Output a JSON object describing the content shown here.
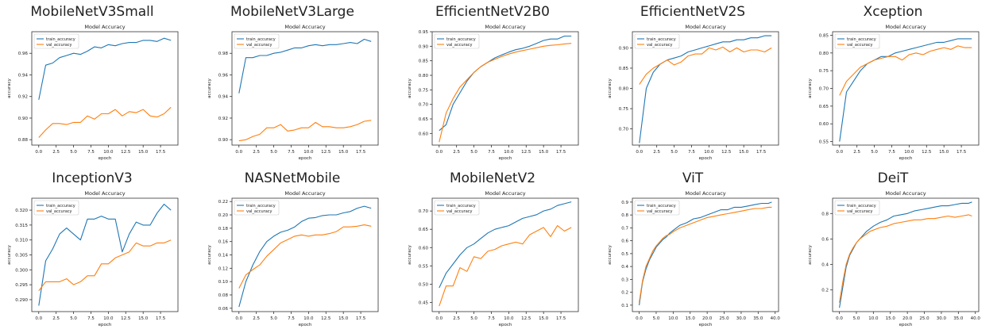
{
  "legend_labels": {
    "train": "train_accuracy",
    "val": "val_accuracy"
  },
  "colors": {
    "train": "#1f77b4",
    "val": "#ff7f0e",
    "axis": "#333333",
    "text": "#222222"
  },
  "chart_data": [
    {
      "model": "MobileNetV3Small",
      "type": "line",
      "title": "Model Accuracy",
      "xlabel": "epoch",
      "ylabel": "accuracy",
      "xlim": [
        -1,
        20
      ],
      "ylim": [
        0.875,
        0.98
      ],
      "x_ticks": [
        0,
        2.5,
        5,
        7.5,
        10,
        12.5,
        15,
        17.5
      ],
      "y_ticks": [
        0.88,
        0.9,
        0.92,
        0.94,
        0.96
      ],
      "legend": "top-left",
      "grid": false,
      "series": [
        {
          "name": "train_accuracy",
          "values": [
            0.917,
            0.949,
            0.951,
            0.956,
            0.958,
            0.96,
            0.959,
            0.962,
            0.966,
            0.965,
            0.968,
            0.967,
            0.969,
            0.97,
            0.97,
            0.972,
            0.972,
            0.971,
            0.974,
            0.972
          ]
        },
        {
          "name": "val_accuracy",
          "values": [
            0.882,
            0.889,
            0.895,
            0.895,
            0.894,
            0.896,
            0.896,
            0.902,
            0.899,
            0.904,
            0.904,
            0.908,
            0.902,
            0.906,
            0.905,
            0.908,
            0.902,
            0.901,
            0.904,
            0.91
          ]
        }
      ]
    },
    {
      "model": "MobileNetV3Large",
      "type": "line",
      "title": "Model Accuracy",
      "xlabel": "epoch",
      "ylabel": "accuracy",
      "xlim": [
        -1,
        20
      ],
      "ylim": [
        0.895,
        1.0
      ],
      "x_ticks": [
        0,
        2.5,
        5,
        7.5,
        10,
        12.5,
        15,
        17.5
      ],
      "y_ticks": [
        0.9,
        0.92,
        0.94,
        0.96,
        0.98
      ],
      "legend": "top-left",
      "grid": false,
      "series": [
        {
          "name": "train_accuracy",
          "values": [
            0.943,
            0.976,
            0.976,
            0.978,
            0.978,
            0.98,
            0.981,
            0.983,
            0.985,
            0.985,
            0.987,
            0.988,
            0.987,
            0.988,
            0.988,
            0.989,
            0.99,
            0.989,
            0.993,
            0.991
          ]
        },
        {
          "name": "val_accuracy",
          "values": [
            0.899,
            0.9,
            0.903,
            0.905,
            0.911,
            0.911,
            0.914,
            0.908,
            0.909,
            0.911,
            0.911,
            0.916,
            0.912,
            0.912,
            0.911,
            0.911,
            0.912,
            0.914,
            0.917,
            0.918
          ]
        }
      ]
    },
    {
      "model": "EfficientNetV2B0",
      "type": "line",
      "title": "Model Accuracy",
      "xlabel": "epoch",
      "ylabel": "accuracy",
      "xlim": [
        -1,
        20
      ],
      "ylim": [
        0.56,
        0.95
      ],
      "x_ticks": [
        0,
        2.5,
        5,
        7.5,
        10,
        12.5,
        15,
        17.5
      ],
      "y_ticks": [
        0.6,
        0.65,
        0.7,
        0.75,
        0.8,
        0.85,
        0.9,
        0.95
      ],
      "legend": "top-left",
      "grid": false,
      "series": [
        {
          "name": "train_accuracy",
          "values": [
            0.61,
            0.63,
            0.7,
            0.74,
            0.78,
            0.81,
            0.83,
            0.845,
            0.86,
            0.87,
            0.88,
            0.888,
            0.893,
            0.9,
            0.91,
            0.92,
            0.925,
            0.925,
            0.935,
            0.935
          ]
        },
        {
          "name": "val_accuracy",
          "values": [
            0.57,
            0.67,
            0.72,
            0.76,
            0.785,
            0.81,
            0.83,
            0.845,
            0.855,
            0.865,
            0.873,
            0.88,
            0.885,
            0.89,
            0.895,
            0.9,
            0.903,
            0.905,
            0.908,
            0.91
          ]
        }
      ]
    },
    {
      "model": "EfficientNetV2S",
      "type": "line",
      "title": "Model Accuracy",
      "xlabel": "epoch",
      "ylabel": "accuracy",
      "xlim": [
        -1,
        20
      ],
      "ylim": [
        0.66,
        0.94
      ],
      "x_ticks": [
        0,
        2.5,
        5,
        7.5,
        10,
        12.5,
        15,
        17.5
      ],
      "y_ticks": [
        0.7,
        0.75,
        0.8,
        0.85,
        0.9
      ],
      "legend": "top-left",
      "grid": false,
      "series": [
        {
          "name": "train_accuracy",
          "values": [
            0.665,
            0.8,
            0.84,
            0.86,
            0.87,
            0.875,
            0.88,
            0.89,
            0.895,
            0.9,
            0.905,
            0.91,
            0.915,
            0.915,
            0.92,
            0.92,
            0.925,
            0.925,
            0.93,
            0.93
          ]
        },
        {
          "name": "val_accuracy",
          "values": [
            0.81,
            0.835,
            0.85,
            0.86,
            0.87,
            0.858,
            0.865,
            0.88,
            0.885,
            0.885,
            0.9,
            0.895,
            0.902,
            0.89,
            0.9,
            0.89,
            0.895,
            0.895,
            0.89,
            0.9
          ]
        }
      ]
    },
    {
      "model": "Xception",
      "type": "line",
      "title": "Model Accuracy",
      "xlabel": "epoch",
      "ylabel": "accuracy",
      "xlim": [
        -1,
        20
      ],
      "ylim": [
        0.54,
        0.86
      ],
      "x_ticks": [
        0,
        2.5,
        5,
        7.5,
        10,
        12.5,
        15,
        17.5
      ],
      "y_ticks": [
        0.55,
        0.6,
        0.65,
        0.7,
        0.75,
        0.8,
        0.85
      ],
      "legend": "top-left",
      "grid": false,
      "series": [
        {
          "name": "train_accuracy",
          "values": [
            0.55,
            0.69,
            0.72,
            0.75,
            0.77,
            0.78,
            0.79,
            0.79,
            0.8,
            0.805,
            0.81,
            0.815,
            0.82,
            0.825,
            0.83,
            0.83,
            0.835,
            0.84,
            0.84,
            0.84
          ]
        },
        {
          "name": "val_accuracy",
          "values": [
            0.68,
            0.72,
            0.74,
            0.76,
            0.77,
            0.78,
            0.785,
            0.79,
            0.79,
            0.78,
            0.795,
            0.8,
            0.795,
            0.805,
            0.81,
            0.815,
            0.81,
            0.82,
            0.815,
            0.815
          ]
        }
      ]
    },
    {
      "model": "InceptionV3",
      "type": "line",
      "title": "Model Accuracy",
      "xlabel": "epoch",
      "ylabel": "accuracy",
      "xlim": [
        -1,
        20
      ],
      "ylim": [
        0.286,
        0.324
      ],
      "x_ticks": [
        0,
        2.5,
        5,
        7.5,
        10,
        12.5,
        15,
        17.5
      ],
      "y_ticks": [
        0.29,
        0.295,
        0.3,
        0.305,
        0.31,
        0.315,
        0.32
      ],
      "legend": "top-left",
      "grid": false,
      "series": [
        {
          "name": "train_accuracy",
          "values": [
            0.288,
            0.303,
            0.307,
            0.312,
            0.314,
            0.312,
            0.31,
            0.317,
            0.317,
            0.318,
            0.317,
            0.317,
            0.306,
            0.312,
            0.316,
            0.315,
            0.315,
            0.319,
            0.322,
            0.32
          ]
        },
        {
          "name": "val_accuracy",
          "values": [
            0.293,
            0.296,
            0.296,
            0.296,
            0.297,
            0.295,
            0.296,
            0.298,
            0.298,
            0.302,
            0.302,
            0.304,
            0.305,
            0.306,
            0.309,
            0.308,
            0.308,
            0.309,
            0.309,
            0.31
          ]
        }
      ]
    },
    {
      "model": "NASNetMobile",
      "type": "line",
      "title": "Model Accuracy",
      "xlabel": "epoch",
      "ylabel": "accuracy",
      "xlim": [
        -1,
        20
      ],
      "ylim": [
        0.055,
        0.225
      ],
      "x_ticks": [
        0,
        2.5,
        5,
        7.5,
        10,
        12.5,
        15,
        17.5
      ],
      "y_ticks": [
        0.06,
        0.08,
        0.1,
        0.12,
        0.14,
        0.16,
        0.18,
        0.2,
        0.22
      ],
      "legend": "top-left",
      "grid": false,
      "series": [
        {
          "name": "train_accuracy",
          "values": [
            0.062,
            0.1,
            0.125,
            0.145,
            0.16,
            0.168,
            0.174,
            0.177,
            0.182,
            0.19,
            0.195,
            0.196,
            0.199,
            0.2,
            0.2,
            0.203,
            0.205,
            0.21,
            0.213,
            0.21
          ]
        },
        {
          "name": "val_accuracy",
          "values": [
            0.09,
            0.11,
            0.118,
            0.125,
            0.138,
            0.148,
            0.158,
            0.163,
            0.168,
            0.17,
            0.168,
            0.17,
            0.17,
            0.172,
            0.175,
            0.182,
            0.182,
            0.183,
            0.185,
            0.183
          ]
        }
      ]
    },
    {
      "model": "MobileNetV2",
      "type": "line",
      "title": "Model Accuracy",
      "xlabel": "epoch",
      "ylabel": "accuracy",
      "xlim": [
        -1,
        20
      ],
      "ylim": [
        0.425,
        0.735
      ],
      "x_ticks": [
        0,
        2.5,
        5,
        7.5,
        10,
        12.5,
        15,
        17.5
      ],
      "y_ticks": [
        0.45,
        0.5,
        0.55,
        0.6,
        0.65,
        0.7
      ],
      "legend": "top-left",
      "grid": false,
      "series": [
        {
          "name": "train_accuracy",
          "values": [
            0.49,
            0.53,
            0.555,
            0.58,
            0.6,
            0.61,
            0.625,
            0.64,
            0.65,
            0.655,
            0.66,
            0.67,
            0.68,
            0.685,
            0.69,
            0.7,
            0.705,
            0.715,
            0.72,
            0.725
          ]
        },
        {
          "name": "val_accuracy",
          "values": [
            0.44,
            0.495,
            0.495,
            0.545,
            0.535,
            0.575,
            0.57,
            0.59,
            0.595,
            0.605,
            0.61,
            0.615,
            0.61,
            0.635,
            0.645,
            0.655,
            0.63,
            0.66,
            0.645,
            0.655
          ]
        }
      ]
    },
    {
      "model": "ViT",
      "type": "line",
      "title": "Model Accuracy",
      "xlabel": "epoch",
      "ylabel": "accuracy",
      "xlim": [
        -2,
        41
      ],
      "ylim": [
        0.05,
        0.93
      ],
      "x_ticks": [
        0,
        5,
        10,
        15,
        20,
        25,
        30,
        35,
        40
      ],
      "y_ticks": [
        0.1,
        0.2,
        0.3,
        0.4,
        0.5,
        0.6,
        0.7,
        0.8,
        0.9
      ],
      "legend": "top-left",
      "grid": false,
      "x": [
        0,
        1,
        2,
        3,
        4,
        5,
        6,
        7,
        8,
        9,
        10,
        12,
        14,
        16,
        18,
        20,
        22,
        24,
        26,
        28,
        30,
        32,
        34,
        36,
        38,
        39
      ],
      "series": [
        {
          "name": "train_accuracy",
          "values": [
            0.1,
            0.28,
            0.38,
            0.45,
            0.5,
            0.55,
            0.58,
            0.61,
            0.63,
            0.66,
            0.68,
            0.72,
            0.74,
            0.77,
            0.78,
            0.8,
            0.82,
            0.84,
            0.84,
            0.86,
            0.86,
            0.87,
            0.88,
            0.89,
            0.89,
            0.9
          ]
        },
        {
          "name": "val_accuracy",
          "values": [
            0.12,
            0.29,
            0.4,
            0.46,
            0.52,
            0.56,
            0.59,
            0.62,
            0.64,
            0.65,
            0.67,
            0.7,
            0.72,
            0.74,
            0.76,
            0.78,
            0.79,
            0.8,
            0.81,
            0.82,
            0.83,
            0.84,
            0.85,
            0.85,
            0.86,
            0.86
          ]
        }
      ]
    },
    {
      "model": "DeiT",
      "type": "line",
      "title": "Model Accuracy",
      "xlabel": "epoch",
      "ylabel": "accuracy",
      "xlim": [
        -2,
        41
      ],
      "ylim": [
        0.03,
        0.92
      ],
      "x_ticks": [
        0,
        5,
        10,
        15,
        20,
        25,
        30,
        35,
        40
      ],
      "y_ticks": [
        0.2,
        0.4,
        0.6,
        0.8
      ],
      "legend": "top-left",
      "grid": false,
      "x": [
        0,
        1,
        2,
        3,
        4,
        5,
        6,
        7,
        8,
        9,
        10,
        12,
        14,
        16,
        18,
        20,
        22,
        24,
        26,
        28,
        30,
        32,
        34,
        36,
        38,
        39
      ],
      "series": [
        {
          "name": "train_accuracy",
          "values": [
            0.06,
            0.22,
            0.38,
            0.47,
            0.52,
            0.57,
            0.6,
            0.63,
            0.66,
            0.68,
            0.7,
            0.73,
            0.75,
            0.78,
            0.79,
            0.8,
            0.82,
            0.83,
            0.84,
            0.85,
            0.86,
            0.86,
            0.87,
            0.88,
            0.88,
            0.89
          ]
        },
        {
          "name": "val_accuracy",
          "values": [
            0.1,
            0.26,
            0.4,
            0.48,
            0.53,
            0.57,
            0.6,
            0.62,
            0.64,
            0.66,
            0.67,
            0.69,
            0.7,
            0.72,
            0.73,
            0.74,
            0.75,
            0.75,
            0.76,
            0.76,
            0.77,
            0.78,
            0.77,
            0.78,
            0.79,
            0.78
          ]
        }
      ]
    }
  ]
}
